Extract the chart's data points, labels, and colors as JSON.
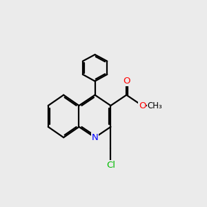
{
  "bg_color": "#ebebeb",
  "atom_colors": {
    "N": "#0000ff",
    "O": "#ff0000",
    "Cl": "#00bb00",
    "C": "#000000"
  },
  "bond_color": "#000000",
  "bond_width": 1.6,
  "label_fontsize": 9.5,
  "label_fontsize_small": 8.5
}
